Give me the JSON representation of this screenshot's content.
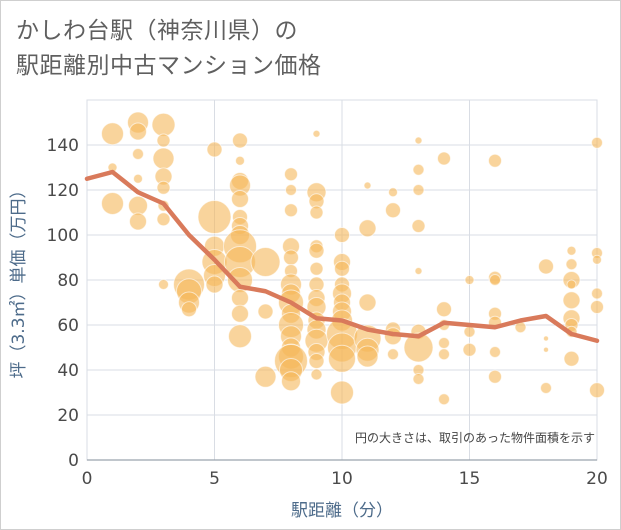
{
  "title": {
    "line1": "かしわ台駅（神奈川県）の",
    "line2": "駅距離別中古マンション価格"
  },
  "chart_data": {
    "type": "scatter",
    "xlabel": "駅距離（分）",
    "ylabel": "坪（3.3㎡）単価（万円）",
    "xlim": [
      0,
      20
    ],
    "ylim": [
      0,
      160
    ],
    "xticks": [
      0,
      5,
      10,
      15,
      20
    ],
    "yticks": [
      0,
      20,
      40,
      60,
      80,
      100,
      120,
      140
    ],
    "grid": true,
    "note": "円の大きさは、取引のあった物件面積を示す",
    "colors": {
      "bubble": "#f5b85a",
      "line": "#d97a5b",
      "grid": "#d9dde4"
    },
    "line_series": {
      "x": [
        0,
        1,
        2,
        3,
        4,
        5,
        6,
        7,
        8,
        9,
        10,
        11,
        12,
        13,
        14,
        15,
        16,
        17,
        18,
        19,
        20
      ],
      "values": [
        125,
        128,
        119,
        114,
        100,
        89,
        77,
        75,
        70,
        63,
        62,
        58,
        56,
        55,
        61,
        60,
        59,
        62,
        64,
        56,
        53
      ]
    },
    "bubbles": [
      [
        1,
        145,
        22
      ],
      [
        1,
        114,
        22
      ],
      [
        1,
        130,
        9
      ],
      [
        2,
        150,
        21
      ],
      [
        2,
        146,
        17
      ],
      [
        2,
        113,
        19
      ],
      [
        2,
        106,
        17
      ],
      [
        2,
        136,
        11
      ],
      [
        2,
        125,
        9
      ],
      [
        3,
        149,
        23
      ],
      [
        3,
        142,
        13
      ],
      [
        3,
        134,
        21
      ],
      [
        3,
        126,
        17
      ],
      [
        3,
        121,
        13
      ],
      [
        3,
        113,
        11
      ],
      [
        3,
        107,
        13
      ],
      [
        3,
        78,
        10
      ],
      [
        4,
        78,
        31
      ],
      [
        4,
        75,
        25
      ],
      [
        4,
        70,
        21
      ],
      [
        4,
        67,
        15
      ],
      [
        5,
        138,
        15
      ],
      [
        5,
        108,
        33
      ],
      [
        5,
        95,
        20
      ],
      [
        5,
        88,
        25
      ],
      [
        5,
        82,
        22
      ],
      [
        5,
        78,
        17
      ],
      [
        6,
        142,
        15
      ],
      [
        6,
        133,
        9
      ],
      [
        6,
        124,
        17
      ],
      [
        6,
        122,
        21
      ],
      [
        6,
        116,
        17
      ],
      [
        6,
        108,
        15
      ],
      [
        6,
        104,
        17
      ],
      [
        6,
        100,
        19
      ],
      [
        6,
        95,
        33
      ],
      [
        6,
        88,
        31
      ],
      [
        6,
        80,
        25
      ],
      [
        6,
        72,
        17
      ],
      [
        6,
        65,
        17
      ],
      [
        6,
        55,
        23
      ],
      [
        7,
        88,
        29
      ],
      [
        7,
        66,
        15
      ],
      [
        7,
        37,
        21
      ],
      [
        8,
        127,
        13
      ],
      [
        8,
        120,
        11
      ],
      [
        8,
        111,
        13
      ],
      [
        8,
        95,
        17
      ],
      [
        8,
        90,
        15
      ],
      [
        8,
        84,
        13
      ],
      [
        8,
        78,
        21
      ],
      [
        8,
        74,
        19
      ],
      [
        8,
        70,
        25
      ],
      [
        8,
        65,
        19
      ],
      [
        8,
        60,
        25
      ],
      [
        8,
        55,
        21
      ],
      [
        8,
        50,
        19
      ],
      [
        8,
        46,
        25
      ],
      [
        8,
        44,
        33
      ],
      [
        8,
        40,
        23
      ],
      [
        8,
        35,
        19
      ],
      [
        9,
        145,
        7
      ],
      [
        9,
        119,
        19
      ],
      [
        9,
        115,
        15
      ],
      [
        9,
        110,
        13
      ],
      [
        9,
        95,
        13
      ],
      [
        9,
        93,
        15
      ],
      [
        9,
        85,
        13
      ],
      [
        9,
        78,
        15
      ],
      [
        9,
        72,
        17
      ],
      [
        9,
        68,
        19
      ],
      [
        9,
        62,
        17
      ],
      [
        9,
        58,
        19
      ],
      [
        9,
        53,
        23
      ],
      [
        9,
        48,
        17
      ],
      [
        9,
        44,
        15
      ],
      [
        9,
        38,
        11
      ],
      [
        10,
        100,
        15
      ],
      [
        10,
        88,
        17
      ],
      [
        10,
        85,
        15
      ],
      [
        10,
        78,
        15
      ],
      [
        10,
        74,
        19
      ],
      [
        10,
        70,
        17
      ],
      [
        10,
        66,
        19
      ],
      [
        10,
        62,
        21
      ],
      [
        10,
        56,
        31
      ],
      [
        10,
        50,
        29
      ],
      [
        10,
        45,
        27
      ],
      [
        10,
        30,
        23
      ],
      [
        11,
        122,
        7
      ],
      [
        11,
        103,
        17
      ],
      [
        11,
        70,
        17
      ],
      [
        11,
        54,
        27
      ],
      [
        11,
        49,
        23
      ],
      [
        11,
        46,
        21
      ],
      [
        12,
        119,
        9
      ],
      [
        12,
        111,
        15
      ],
      [
        12,
        58,
        15
      ],
      [
        12,
        55,
        17
      ],
      [
        12,
        47,
        11
      ],
      [
        13,
        142,
        7
      ],
      [
        13,
        129,
        11
      ],
      [
        13,
        120,
        11
      ],
      [
        13,
        104,
        13
      ],
      [
        13,
        84,
        7
      ],
      [
        13,
        57,
        15
      ],
      [
        13,
        50,
        29
      ],
      [
        13,
        40,
        11
      ],
      [
        13,
        36,
        11
      ],
      [
        14,
        134,
        13
      ],
      [
        14,
        67,
        15
      ],
      [
        14,
        60,
        11
      ],
      [
        14,
        52,
        11
      ],
      [
        14,
        47,
        11
      ],
      [
        14,
        27,
        11
      ],
      [
        15,
        80,
        9
      ],
      [
        15,
        57,
        11
      ],
      [
        15,
        49,
        13
      ],
      [
        16,
        133,
        13
      ],
      [
        16,
        81,
        13
      ],
      [
        16,
        80,
        11
      ],
      [
        16,
        65,
        13
      ],
      [
        16,
        61,
        13
      ],
      [
        16,
        48,
        11
      ],
      [
        16,
        37,
        13
      ],
      [
        17,
        59,
        11
      ],
      [
        18,
        86,
        15
      ],
      [
        18,
        54,
        5
      ],
      [
        18,
        49,
        5
      ],
      [
        18,
        32,
        11
      ],
      [
        19,
        93,
        9
      ],
      [
        19,
        87,
        11
      ],
      [
        19,
        80,
        17
      ],
      [
        19,
        78,
        9
      ],
      [
        19,
        71,
        17
      ],
      [
        19,
        63,
        17
      ],
      [
        19,
        60,
        13
      ],
      [
        19,
        57,
        11
      ],
      [
        19,
        45,
        15
      ],
      [
        20,
        141,
        11
      ],
      [
        20,
        92,
        11
      ],
      [
        20,
        89,
        9
      ],
      [
        20,
        74,
        11
      ],
      [
        20,
        68,
        13
      ],
      [
        20,
        31,
        15
      ]
    ]
  }
}
